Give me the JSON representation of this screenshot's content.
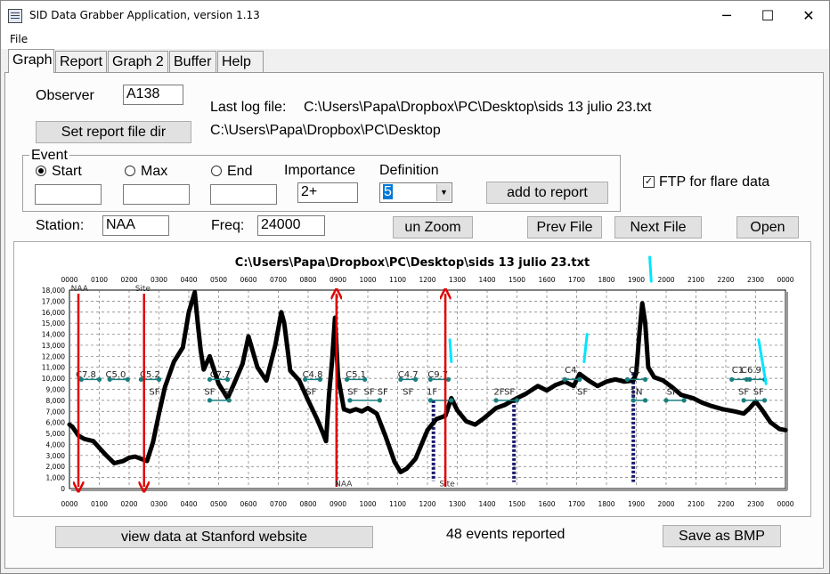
{
  "window": {
    "title": "SID Data Grabber Application, version 1.13",
    "minimize": "─",
    "maximize": "☐",
    "close": "✕"
  },
  "menu": [
    "File"
  ],
  "tabs": [
    "Graph",
    "Report",
    "Graph 2",
    "Buffer",
    "Help"
  ],
  "form": {
    "observer_label": "Observer",
    "observer_value": "A138",
    "last_log_label": "Last log file:",
    "last_log_value": "C:\\Users\\Papa\\Dropbox\\PC\\Desktop\\sids 13 julio 23.txt",
    "report_dir_value": "C:\\Users\\Papa\\Dropbox\\PC\\Desktop",
    "set_report_dir_button": "Set report file dir",
    "event_group": "Event",
    "start_label": "Start",
    "max_label": "Max",
    "end_label": "End",
    "start_value": "",
    "max_value": "",
    "end_value": "",
    "importance_label": "Importance",
    "importance_value": "2+",
    "definition_label": "Definition",
    "definition_value": "5",
    "add_to_report_button": "add to report",
    "ftp_label": "FTP for flare data",
    "ftp_checked": true,
    "station_label": "Station:",
    "station_value": "NAA",
    "freq_label": "Freq:",
    "freq_value": "24000",
    "unzoom_button": "un Zoom",
    "prev_file_button": "Prev File",
    "next_file_button": "Next File",
    "open_button": "Open"
  },
  "footer": {
    "stanford_button": "view data at Stanford website",
    "events_text": "48 events reported",
    "save_bmp_button": "Save as BMP"
  },
  "chart_data": {
    "type": "line",
    "title": "C:\\Users\\Papa\\Dropbox\\PC\\Desktop\\sids 13 julio 23.txt",
    "x_ticks": [
      "0000",
      "0100",
      "0200",
      "0300",
      "0400",
      "0500",
      "0600",
      "0700",
      "0800",
      "0900",
      "1000",
      "1100",
      "1200",
      "1300",
      "1400",
      "1500",
      "1600",
      "1700",
      "1800",
      "1900",
      "2000",
      "2100",
      "2200",
      "2300",
      "0000"
    ],
    "y_ticks": [
      "0",
      "1,000",
      "2,000",
      "3,000",
      "4,000",
      "5,000",
      "6,000",
      "7,000",
      "8,000",
      "9,000",
      "10,000",
      "11,000",
      "12,000",
      "13,000",
      "14,000",
      "15,000",
      "16,000",
      "17,000",
      "18,000"
    ],
    "ylim": [
      0,
      18000
    ],
    "xlim_hours": [
      0,
      24
    ],
    "grid": true,
    "colors": {
      "signal": "#000000",
      "markers": "#1a7f7f",
      "arrows": "#e00000",
      "drops": "#1a1a6e",
      "flare": "#00e5ff"
    },
    "signal": {
      "x_hours": [
        0,
        0.1,
        0.3,
        0.5,
        0.8,
        1.0,
        1.2,
        1.5,
        1.8,
        2.0,
        2.2,
        2.4,
        2.5,
        2.6,
        2.8,
        3.0,
        3.2,
        3.5,
        3.8,
        4.0,
        4.2,
        4.3,
        4.4,
        4.5,
        4.7,
        5.0,
        5.3,
        5.5,
        5.8,
        6.0,
        6.3,
        6.6,
        6.9,
        7.1,
        7.2,
        7.4,
        7.7,
        8.0,
        8.3,
        8.5,
        8.6,
        8.7,
        8.8,
        8.9,
        9.0,
        9.2,
        9.4,
        9.6,
        9.8,
        10.0,
        10.3,
        10.6,
        10.9,
        11.1,
        11.3,
        11.6,
        12.0,
        12.3,
        12.6,
        12.8,
        13.0,
        13.3,
        13.6,
        13.9,
        14.3,
        14.6,
        15.0,
        15.3,
        15.7,
        16.0,
        16.3,
        16.6,
        16.9,
        17.1,
        17.2,
        17.4,
        17.7,
        18.0,
        18.3,
        18.6,
        18.9,
        19.0,
        19.1,
        19.2,
        19.3,
        19.4,
        19.6,
        19.9,
        20.2,
        20.5,
        20.9,
        21.2,
        21.5,
        21.9,
        22.3,
        22.6,
        22.8,
        23.0,
        23.2,
        23.5,
        23.8,
        24.0
      ],
      "values": [
        5800,
        5600,
        4800,
        4500,
        4300,
        3700,
        3100,
        2300,
        2500,
        2800,
        2900,
        2700,
        2600,
        2500,
        4200,
        6800,
        9200,
        11500,
        12800,
        16000,
        17800,
        15000,
        12500,
        10800,
        12000,
        9500,
        8200,
        9400,
        11300,
        13800,
        11000,
        9800,
        13000,
        16000,
        15000,
        10700,
        9800,
        8000,
        6300,
        5000,
        4300,
        8500,
        11500,
        15500,
        10200,
        7200,
        7000,
        7200,
        7000,
        7300,
        6800,
        4700,
        2400,
        1500,
        1800,
        2700,
        5300,
        6300,
        6600,
        8200,
        7100,
        6100,
        5800,
        6400,
        7300,
        7600,
        8200,
        8600,
        9300,
        8900,
        9400,
        9700,
        9300,
        10400,
        10200,
        9800,
        9300,
        9700,
        9900,
        9700,
        9800,
        10500,
        14000,
        16800,
        15000,
        11000,
        10100,
        9800,
        9200,
        8500,
        8200,
        7800,
        7500,
        7200,
        7000,
        6800,
        7300,
        7900,
        7200,
        6000,
        5400,
        5300
      ]
    },
    "arrows": [
      {
        "x_hours": 0.3,
        "direction": "down"
      },
      {
        "x_hours": 2.5,
        "direction": "down"
      },
      {
        "x_hours": 8.95,
        "direction": "up"
      },
      {
        "x_hours": 12.6,
        "direction": "up"
      }
    ],
    "drops": [
      {
        "x_hours": 12.2,
        "from": 8000,
        "to": 700
      },
      {
        "x_hours": 14.9,
        "from": 8000,
        "to": 600
      },
      {
        "x_hours": 18.9,
        "from": 10500,
        "to": 600
      }
    ],
    "annotations": [
      {
        "text": "C7.8",
        "x_hours": 0.55,
        "y": 10100
      },
      {
        "text": "C5.0",
        "x_hours": 1.55,
        "y": 10100
      },
      {
        "text": "C5.2",
        "x_hours": 2.7,
        "y": 10100
      },
      {
        "text": "SF",
        "x_hours": 2.85,
        "y": 8500
      },
      {
        "text": "C7.7",
        "x_hours": 5.05,
        "y": 10100
      },
      {
        "text": "SF",
        "x_hours": 4.7,
        "y": 8500
      },
      {
        "text": "SF",
        "x_hours": 5.35,
        "y": 8500
      },
      {
        "text": "C4.8",
        "x_hours": 8.15,
        "y": 10100
      },
      {
        "text": "SF",
        "x_hours": 8.1,
        "y": 8500
      },
      {
        "text": "C5.1",
        "x_hours": 9.6,
        "y": 10100
      },
      {
        "text": "SF",
        "x_hours": 9.5,
        "y": 8500
      },
      {
        "text": "SF",
        "x_hours": 10.05,
        "y": 8500
      },
      {
        "text": "SF",
        "x_hours": 10.5,
        "y": 8500
      },
      {
        "text": "C4.7",
        "x_hours": 11.35,
        "y": 10100
      },
      {
        "text": "SF",
        "x_hours": 11.35,
        "y": 8500
      },
      {
        "text": "C9.7",
        "x_hours": 12.35,
        "y": 10100
      },
      {
        "text": "1F",
        "x_hours": 12.15,
        "y": 8500
      },
      {
        "text": "2F",
        "x_hours": 14.4,
        "y": 8500
      },
      {
        "text": "SF",
        "x_hours": 14.75,
        "y": 8500
      },
      {
        "text": "C4",
        "x_hours": 16.8,
        "y": 10500
      },
      {
        "text": "SF",
        "x_hours": 17.2,
        "y": 8500
      },
      {
        "text": "C1",
        "x_hours": 18.95,
        "y": 10500
      },
      {
        "text": "1N",
        "x_hours": 19.0,
        "y": 8500
      },
      {
        "text": "SF",
        "x_hours": 20.2,
        "y": 8500
      },
      {
        "text": "C1",
        "x_hours": 22.4,
        "y": 10500
      },
      {
        "text": "C6.9",
        "x_hours": 22.85,
        "y": 10500
      },
      {
        "text": "SF",
        "x_hours": 22.6,
        "y": 8500
      },
      {
        "text": "SF",
        "x_hours": 23.1,
        "y": 8500
      }
    ],
    "marker_pairs": [
      {
        "x1": 0.4,
        "x2": 1.0,
        "y": 9900
      },
      {
        "x1": 1.35,
        "x2": 1.95,
        "y": 9900
      },
      {
        "x1": 2.4,
        "x2": 3.0,
        "y": 9900
      },
      {
        "x1": 4.7,
        "x2": 5.3,
        "y": 9900
      },
      {
        "x1": 7.9,
        "x2": 8.4,
        "y": 9900
      },
      {
        "x1": 9.3,
        "x2": 9.9,
        "y": 9900
      },
      {
        "x1": 11.1,
        "x2": 11.6,
        "y": 9900
      },
      {
        "x1": 12.1,
        "x2": 12.7,
        "y": 9900
      },
      {
        "x1": 16.6,
        "x2": 17.1,
        "y": 9900
      },
      {
        "x1": 18.7,
        "x2": 19.3,
        "y": 9900
      },
      {
        "x1": 22.2,
        "x2": 22.7,
        "y": 9900
      },
      {
        "x1": 22.8,
        "x2": 23.3,
        "y": 9900
      },
      {
        "x1": 4.7,
        "x2": 5.35,
        "y": 8000
      },
      {
        "x1": 9.4,
        "x2": 10.4,
        "y": 8000
      },
      {
        "x1": 12.1,
        "x2": 12.8,
        "y": 8000
      },
      {
        "x1": 14.3,
        "x2": 15.0,
        "y": 8000
      },
      {
        "x1": 18.9,
        "x2": 19.3,
        "y": 8000
      },
      {
        "x1": 20.0,
        "x2": 20.6,
        "y": 8000
      },
      {
        "x1": 22.6,
        "x2": 23.3,
        "y": 8000
      }
    ],
    "flare_marks": [
      {
        "x1": 12.75,
        "y1": 13500,
        "x2": 12.8,
        "y2": 11500
      },
      {
        "x1": 17.35,
        "y1": 14000,
        "x2": 17.25,
        "y2": 11500
      },
      {
        "x1": 19.45,
        "y1": 21000,
        "x2": 19.5,
        "y2": 18800
      },
      {
        "x1": 23.1,
        "y1": 13500,
        "x2": 23.35,
        "y2": 9500
      }
    ],
    "station_labels": [
      {
        "text": "NAA",
        "x_hours": 0.05,
        "y": 18000
      },
      {
        "text": "Site",
        "x_hours": 2.2,
        "y": 18000
      },
      {
        "text": "NAA",
        "x_hours": 8.9,
        "y": 300
      },
      {
        "text": "Site",
        "x_hours": 12.4,
        "y": 300
      }
    ]
  }
}
